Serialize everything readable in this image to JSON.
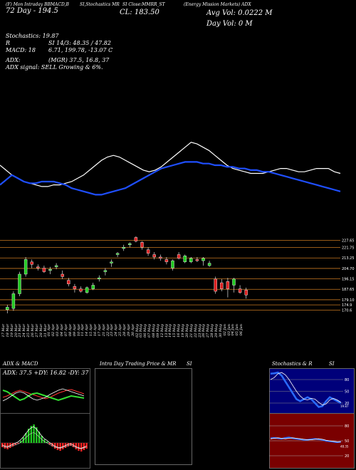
{
  "header": {
    "left_line1": "(F) Mon Intraday BBMACD,B",
    "left_line2": "72 Day - 194.5",
    "mid1": "SI,Stochastics MR",
    "mid2": "SI Close:MMRR_ST",
    "close_text": "CL: 183.50",
    "right_line1": "(Energy Mission Markets) ADX",
    "right_line2": "Avg Vol: 0.0222  M",
    "right_line3": "Day Vol: 0   M"
  },
  "info": {
    "stoch": "Stochastics: 19.87",
    "r_si": "R",
    "si_vals": "SI 14/3: 48.35 / 47.82",
    "macd_label": "MACD: 18",
    "macd_vals": "6.71, 199.78, -13.07 C",
    "adx_label": "ADX:",
    "adx_vals": "(MGR) 37.5, 16.8, 37",
    "adx_signal": "ADX  signal: SELL Growing & 6%."
  },
  "colors": {
    "price_line": "#ffffff",
    "ma_line": "#1f4fff",
    "bull": "#22cc22",
    "bear": "#dd2222",
    "grid": "#c87820"
  },
  "chart_data": [
    {
      "type": "line",
      "title": "",
      "x": [
        "17 Mar",
        "18 Mar",
        "19 Mar",
        "20 Mar",
        "21 Mar",
        "24 Mar",
        "25 Mar",
        "26 Mar",
        "27 Mar",
        "28 Mar",
        "31 Mar",
        "01 Apr",
        "02 Apr",
        "03 Apr",
        "04 Apr",
        "07 Apr",
        "08 Apr",
        "09 Apr",
        "10 Apr",
        "11 Apr",
        "14 Apr",
        "15 Apr",
        "16 Apr",
        "17 Apr",
        "21 Apr",
        "22 Apr",
        "23 Apr",
        "24 Apr",
        "25 Apr",
        "28 Apr",
        "29 Apr",
        "30 Apr",
        "02 May",
        "05 May",
        "06 May",
        "07 May",
        "08 May",
        "09 May",
        "12 May",
        "13 May",
        "14 May",
        "15 May",
        "16 May",
        "19 May",
        "20 May",
        "21 May",
        "22 May",
        "23 May",
        "26 May",
        "27 May",
        "28 May",
        "29 May",
        "30 May",
        "02 Jun",
        "03 Jun",
        "04 Jun",
        "05 Jun",
        "06 Jun"
      ],
      "series": [
        {
          "values": [
            60,
            57,
            54,
            52,
            50,
            49,
            48,
            47,
            47,
            48,
            48,
            49,
            50,
            52,
            54,
            57,
            60,
            63,
            65,
            66,
            65,
            63,
            61,
            59,
            57,
            56,
            57,
            59,
            62,
            65,
            68,
            71,
            74,
            73,
            71,
            69,
            66,
            63,
            60,
            58,
            57,
            56,
            55,
            55,
            55,
            56,
            57,
            58,
            58,
            57,
            56,
            56,
            57,
            58,
            58,
            58,
            56,
            55
          ]
        },
        {
          "values": [
            48,
            51,
            54,
            52,
            50,
            49,
            49,
            50,
            50,
            50,
            49,
            48,
            46,
            45,
            44,
            43,
            42,
            42,
            43,
            44,
            45,
            46,
            48,
            50,
            52,
            54,
            56,
            58,
            59,
            60,
            61,
            62,
            62,
            62,
            61,
            61,
            60,
            60,
            59,
            59,
            58,
            58,
            57,
            57,
            56,
            56,
            55,
            54,
            53,
            52,
            51,
            50,
            49,
            48,
            47,
            46,
            45,
            44
          ]
        }
      ],
      "ylim": [
        0,
        100
      ]
    },
    {
      "type": "candlestick",
      "y_ticks": [
        227.65,
        221.75,
        213.25,
        204.7,
        196.15,
        187.65,
        179.1,
        174.9,
        170.6
      ],
      "y_tick_labels": [
        "227.65",
        "221.75",
        "213.25",
        "204.70",
        "196.15",
        "187.65",
        "179.10",
        "174.9",
        "170.6"
      ],
      "ylim": [
        168,
        232
      ],
      "candles": [
        {
          "x": "17 Mar",
          "o": 171,
          "h": 175,
          "l": 168,
          "c": 173
        },
        {
          "x": "18 Mar",
          "o": 172,
          "h": 186,
          "l": 170,
          "c": 184
        },
        {
          "x": "19 Mar",
          "o": 184,
          "h": 202,
          "l": 182,
          "c": 200
        },
        {
          "x": "20 Mar",
          "o": 200,
          "h": 214,
          "l": 198,
          "c": 212
        },
        {
          "x": "21 Mar",
          "o": 210,
          "h": 212,
          "l": 205,
          "c": 208
        },
        {
          "x": "24 Mar",
          "o": 206,
          "h": 208,
          "l": 203,
          "c": 205
        },
        {
          "x": "25 Mar",
          "o": 205,
          "h": 207,
          "l": 201,
          "c": 202
        },
        {
          "x": "26 Mar",
          "o": 203,
          "h": 206,
          "l": 200,
          "c": 204
        },
        {
          "x": "27 Mar",
          "o": 206,
          "h": 209,
          "l": 204,
          "c": 207
        },
        {
          "x": "28 Mar",
          "o": 200,
          "h": 203,
          "l": 196,
          "c": 198
        },
        {
          "x": "31 Mar",
          "o": 195,
          "h": 197,
          "l": 190,
          "c": 192
        },
        {
          "x": "01 Apr",
          "o": 190,
          "h": 192,
          "l": 185,
          "c": 188
        },
        {
          "x": "02 Apr",
          "o": 188,
          "h": 190,
          "l": 185,
          "c": 186
        },
        {
          "x": "03 Apr",
          "o": 185,
          "h": 190,
          "l": 184,
          "c": 189
        },
        {
          "x": "04 Apr",
          "o": 188,
          "h": 193,
          "l": 187,
          "c": 191
        },
        {
          "x": "07 Apr",
          "o": 196,
          "h": 199,
          "l": 194,
          "c": 197
        },
        {
          "x": "08 Apr",
          "o": 202,
          "h": 205,
          "l": 199,
          "c": 203
        },
        {
          "x": "09 Apr",
          "o": 209,
          "h": 212,
          "l": 206,
          "c": 210
        },
        {
          "x": "10 Apr",
          "o": 216,
          "h": 218,
          "l": 214,
          "c": 217
        },
        {
          "x": "11 Apr",
          "o": 221,
          "h": 224,
          "l": 219,
          "c": 222
        },
        {
          "x": "14 Apr",
          "o": 224,
          "h": 226,
          "l": 222,
          "c": 225
        },
        {
          "x": "15 Apr",
          "o": 230,
          "h": 231,
          "l": 226,
          "c": 227
        },
        {
          "x": "16 Apr",
          "o": 226,
          "h": 227,
          "l": 220,
          "c": 222
        },
        {
          "x": "17 Apr",
          "o": 220,
          "h": 222,
          "l": 215,
          "c": 217
        },
        {
          "x": "21 Apr",
          "o": 216,
          "h": 218,
          "l": 212,
          "c": 214
        },
        {
          "x": "22 Apr",
          "o": 214,
          "h": 216,
          "l": 211,
          "c": 213
        },
        {
          "x": "23 Apr",
          "o": 212,
          "h": 214,
          "l": 208,
          "c": 210
        },
        {
          "x": "24 Apr",
          "o": 205,
          "h": 212,
          "l": 203,
          "c": 211
        },
        {
          "x": "25 Apr",
          "o": 216,
          "h": 218,
          "l": 212,
          "c": 213
        },
        {
          "x": "28 Apr",
          "o": 210,
          "h": 216,
          "l": 209,
          "c": 215
        },
        {
          "x": "29 Apr",
          "o": 210,
          "h": 214,
          "l": 209,
          "c": 213
        },
        {
          "x": "30 Apr",
          "o": 212,
          "h": 214,
          "l": 210,
          "c": 211
        },
        {
          "x": "02 May",
          "o": 211,
          "h": 214,
          "l": 207,
          "c": 213
        },
        {
          "x": "05 May",
          "o": 207,
          "h": 211,
          "l": 206,
          "c": 209
        },
        {
          "x": "06 May",
          "o": 196,
          "h": 198,
          "l": 184,
          "c": 186
        },
        {
          "x": "07 May",
          "o": 193,
          "h": 196,
          "l": 186,
          "c": 188
        },
        {
          "x": "08 May",
          "o": 194,
          "h": 197,
          "l": 181,
          "c": 188
        },
        {
          "x": "09 May",
          "o": 191,
          "h": 197,
          "l": 185,
          "c": 196
        },
        {
          "x": "12 May",
          "o": 188,
          "h": 191,
          "l": 184,
          "c": 185
        },
        {
          "x": "13 May",
          "o": 187,
          "h": 189,
          "l": 180,
          "c": 183
        }
      ]
    }
  ],
  "bottom": {
    "panel1_title": "ADX  & MACD",
    "panel1_adx": "ADX: 37.5  +DY: 16.82  -DY: 37",
    "panel2_title": "Intra  Day Trading Price  & MR",
    "panel2_si": "SI",
    "panel3_title": "Stochastics & R",
    "panel3_si": "SI",
    "stoch_levels": [
      "80",
      "50",
      "20"
    ],
    "stoch_last": "19.87",
    "si_levels": [
      "80",
      "50",
      "20"
    ],
    "si_last": "48.35"
  }
}
